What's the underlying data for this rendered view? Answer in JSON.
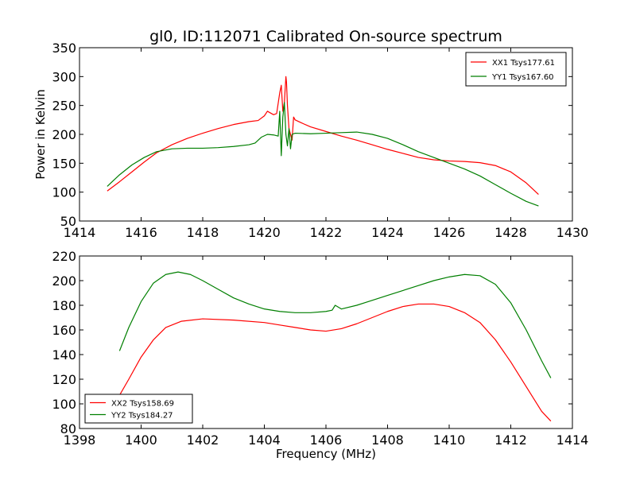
{
  "chart_data": [
    {
      "type": "line",
      "title": "gl0, ID:112071 Calibrated On-source spectrum",
      "xlabel": "",
      "ylabel": "Power in Kelvin",
      "xlim": [
        1414,
        1430
      ],
      "ylim": [
        50,
        350
      ],
      "xticks": [
        1414,
        1416,
        1418,
        1420,
        1422,
        1424,
        1426,
        1428,
        1430
      ],
      "yticks": [
        50,
        100,
        150,
        200,
        250,
        300,
        350
      ],
      "legend_position": "top-right",
      "series": [
        {
          "name": "XX1 Tsys177.61",
          "color": "#ff0000",
          "x": [
            1414.9,
            1415.3,
            1415.7,
            1416.1,
            1416.5,
            1417.0,
            1417.5,
            1418.0,
            1418.5,
            1419.0,
            1419.5,
            1419.8,
            1420.0,
            1420.1,
            1420.3,
            1420.4,
            1420.5,
            1420.55,
            1420.6,
            1420.65,
            1420.7,
            1420.72,
            1420.75,
            1420.8,
            1420.85,
            1420.9,
            1420.95,
            1421.0,
            1421.2,
            1421.5,
            1422.0,
            1422.5,
            1423.0,
            1423.5,
            1424.0,
            1424.5,
            1425.0,
            1425.5,
            1426.0,
            1426.5,
            1427.0,
            1427.5,
            1428.0,
            1428.5,
            1428.9
          ],
          "y": [
            102,
            118,
            135,
            152,
            168,
            182,
            193,
            202,
            210,
            217,
            222,
            224,
            232,
            240,
            234,
            236,
            272,
            285,
            240,
            255,
            300,
            290,
            250,
            210,
            200,
            190,
            230,
            225,
            220,
            213,
            205,
            197,
            190,
            182,
            174,
            167,
            160,
            156,
            154,
            153,
            151,
            146,
            135,
            116,
            96
          ]
        },
        {
          "name": "YY1 Tsys167.60",
          "color": "#007f00",
          "x": [
            1414.9,
            1415.3,
            1415.7,
            1416.1,
            1416.5,
            1417.0,
            1417.5,
            1418.0,
            1418.5,
            1419.0,
            1419.5,
            1419.7,
            1419.9,
            1420.1,
            1420.3,
            1420.45,
            1420.5,
            1420.55,
            1420.6,
            1420.65,
            1420.7,
            1420.75,
            1420.8,
            1420.85,
            1420.9,
            1421.0,
            1421.5,
            1422.0,
            1422.5,
            1423.0,
            1423.5,
            1424.0,
            1424.5,
            1425.0,
            1425.5,
            1426.0,
            1426.5,
            1427.0,
            1427.5,
            1428.0,
            1428.5,
            1428.9
          ],
          "y": [
            110,
            130,
            147,
            160,
            170,
            175,
            176,
            176,
            177,
            179,
            182,
            185,
            195,
            200,
            199,
            197,
            240,
            163,
            230,
            255,
            200,
            180,
            210,
            175,
            200,
            202,
            201,
            202,
            203,
            204,
            200,
            193,
            182,
            170,
            160,
            150,
            140,
            128,
            113,
            98,
            84,
            76
          ]
        }
      ]
    },
    {
      "type": "line",
      "title": "",
      "xlabel": "Frequency (MHz)",
      "ylabel": "",
      "xlim": [
        1398,
        1414
      ],
      "ylim": [
        80,
        220
      ],
      "xticks": [
        1398,
        1400,
        1402,
        1404,
        1406,
        1408,
        1410,
        1412,
        1414
      ],
      "yticks": [
        80,
        100,
        120,
        140,
        160,
        180,
        200,
        220
      ],
      "legend_position": "bottom-left",
      "series": [
        {
          "name": "XX2 Tsys158.69",
          "color": "#ff0000",
          "x": [
            1399.3,
            1399.6,
            1400.0,
            1400.4,
            1400.8,
            1401.3,
            1402.0,
            1403.0,
            1404.0,
            1404.5,
            1405.0,
            1405.5,
            1406.0,
            1406.5,
            1407.0,
            1407.5,
            1408.0,
            1408.5,
            1409.0,
            1409.5,
            1410.0,
            1410.5,
            1411.0,
            1411.5,
            1412.0,
            1412.5,
            1413.0,
            1413.3
          ],
          "y": [
            107,
            120,
            138,
            152,
            162,
            167,
            169,
            168,
            166,
            164,
            162,
            160,
            159,
            161,
            165,
            170,
            175,
            179,
            181,
            181,
            179,
            174,
            166,
            152,
            134,
            114,
            94,
            86
          ]
        },
        {
          "name": "YY2 Tsys184.27",
          "color": "#007f00",
          "x": [
            1399.3,
            1399.6,
            1400.0,
            1400.4,
            1400.8,
            1401.2,
            1401.6,
            1402.0,
            1402.5,
            1403.0,
            1403.5,
            1404.0,
            1404.5,
            1405.0,
            1405.5,
            1406.0,
            1406.2,
            1406.3,
            1406.5,
            1407.0,
            1407.5,
            1408.0,
            1408.5,
            1409.0,
            1409.5,
            1410.0,
            1410.5,
            1411.0,
            1411.5,
            1412.0,
            1412.5,
            1413.0,
            1413.3
          ],
          "y": [
            143,
            162,
            183,
            198,
            205,
            207,
            205,
            200,
            193,
            186,
            181,
            177,
            175,
            174,
            174,
            175,
            176,
            180,
            177,
            180,
            184,
            188,
            192,
            196,
            200,
            203,
            205,
            204,
            197,
            182,
            160,
            135,
            121
          ]
        }
      ]
    }
  ]
}
